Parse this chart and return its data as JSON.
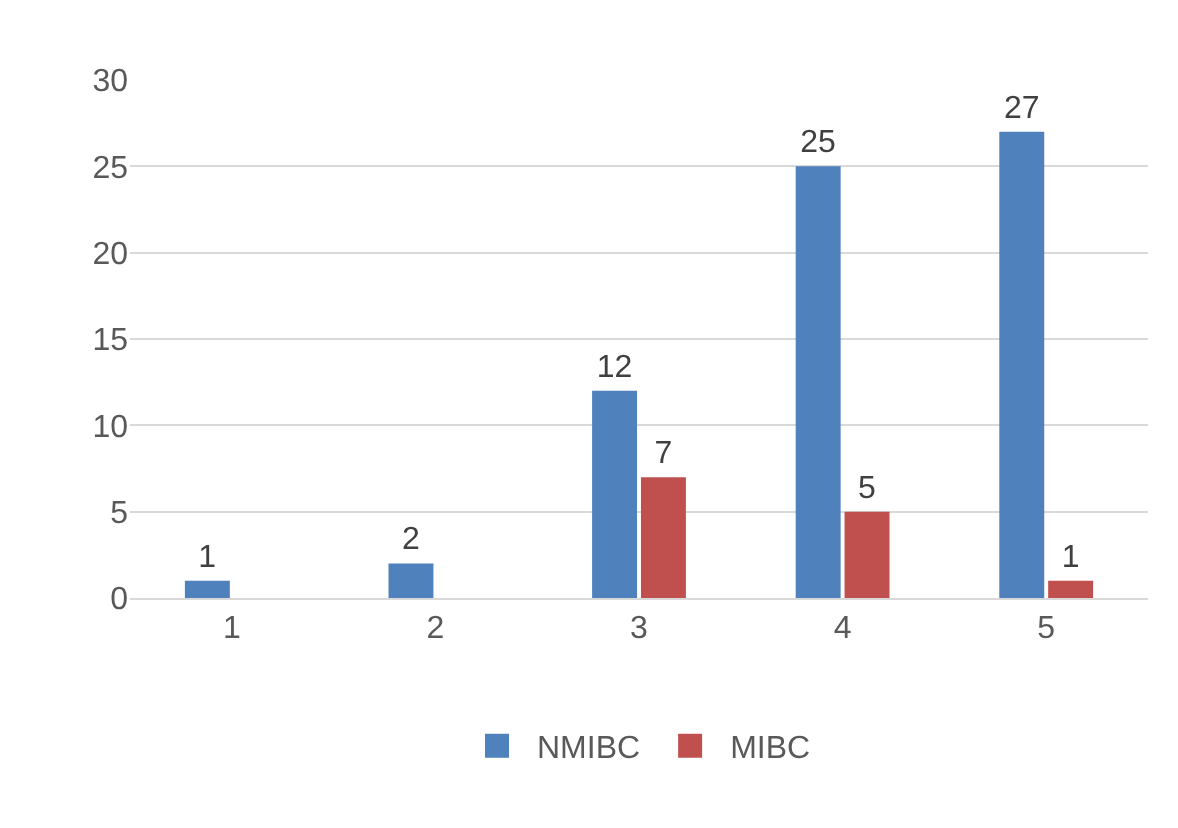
{
  "chart_data": {
    "type": "bar",
    "categories": [
      "1",
      "2",
      "3",
      "4",
      "5"
    ],
    "series": [
      {
        "name": "NMIBC",
        "color": "#4f81bd",
        "values": [
          1,
          2,
          12,
          25,
          27
        ]
      },
      {
        "name": "MIBC",
        "color": "#c0504d",
        "values": [
          null,
          null,
          7,
          5,
          1
        ]
      }
    ],
    "ylim": [
      0,
      30
    ],
    "yticks": [
      0,
      5,
      10,
      15,
      20,
      25,
      30
    ],
    "grid": "y",
    "legend": "bottom",
    "data_labels": true
  }
}
